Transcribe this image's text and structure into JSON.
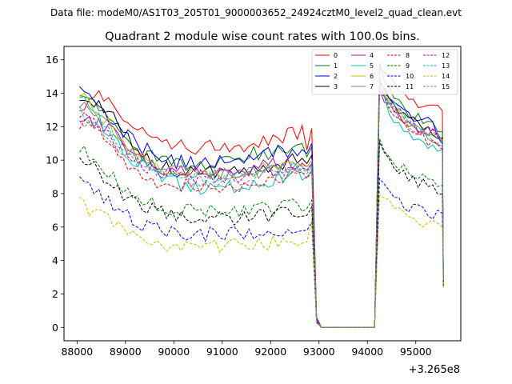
{
  "chart_data": {
    "type": "line",
    "suptitle": "Data file: modeM0/AS1T03_205T01_9000003652_24924cztM0_level2_quad_clean.evt",
    "title": "Quadrant 2 module wise count rates with 100.0s bins.",
    "xlabel": "",
    "ylabel": "",
    "x_offset_label": "+3.265e8",
    "xlim": [
      87730,
      95930
    ],
    "ylim": [
      -0.8,
      16.8
    ],
    "x_ticks": [
      88000,
      89000,
      90000,
      91000,
      92000,
      93000,
      94000,
      95000
    ],
    "x_tick_labels": [
      "88000",
      "89000",
      "90000",
      "91000",
      "92000",
      "93000",
      "94000",
      "95000"
    ],
    "y_ticks": [
      0,
      2,
      4,
      6,
      8,
      10,
      12,
      14,
      16
    ],
    "y_tick_labels": [
      "0",
      "2",
      "4",
      "6",
      "8",
      "10",
      "12",
      "14",
      "16"
    ],
    "bin_width": 100,
    "segment1": {
      "x_start": 88050,
      "x_end": 92850,
      "gap_drop_x": 92950,
      "gap_start": 93050,
      "gap_end": 94150,
      "seg2_start": 94250,
      "seg2_end": 95550
    },
    "legend": {
      "position": "top-right",
      "columns": 4
    },
    "series": [
      {
        "name": "0",
        "color": "#ff0000",
        "dash": "solid",
        "shape": [
          13.1,
          14.2,
          12.6,
          11.9,
          11.3,
          11.0,
          10.8,
          11.0,
          10.9,
          10.9,
          11.3,
          11.6,
          11.9
        ],
        "tail": [
          10.6,
          11.9,
          0.6
        ],
        "seg2": [
          15.6,
          14.5,
          13.8,
          13.3,
          13.0,
          12.9
        ],
        "end": 2.6
      },
      {
        "name": "1",
        "color": "#008000",
        "dash": "solid",
        "shape": [
          13.6,
          13.3,
          11.8,
          10.5,
          10.1,
          9.7,
          9.6,
          9.8,
          10.2,
          10.4,
          10.5,
          10.7,
          10.9
        ],
        "tail": [
          10.2,
          10.8,
          0.4
        ],
        "seg2": [
          15.8,
          13.9,
          13.0,
          12.5,
          12.2,
          11.6
        ],
        "end": 3.2
      },
      {
        "name": "2",
        "color": "#0000ff",
        "dash": "solid",
        "shape": [
          14.2,
          13.3,
          11.9,
          10.9,
          10.3,
          9.9,
          9.8,
          9.9,
          10.1,
          10.1,
          10.4,
          10.6,
          10.7
        ],
        "tail": [
          10.4,
          11.0,
          0.5
        ],
        "seg2": [
          14.8,
          13.3,
          12.8,
          12.5,
          12.2,
          11.3
        ],
        "end": 3.0
      },
      {
        "name": "3",
        "color": "#000000",
        "dash": "solid",
        "shape": [
          13.2,
          13.7,
          12.0,
          10.5,
          9.7,
          9.4,
          9.3,
          9.3,
          9.4,
          9.5,
          9.7,
          10.0,
          10.2
        ],
        "tail": [
          9.8,
          10.3,
          0.4
        ],
        "seg2": [
          14.6,
          13.4,
          12.6,
          12.1,
          11.7,
          11.2
        ],
        "end": 3.0
      },
      {
        "name": "4",
        "color": "#bf00bf",
        "dash": "solid",
        "shape": [
          12.3,
          12.3,
          11.3,
          10.1,
          9.6,
          9.3,
          9.2,
          9.2,
          9.4,
          9.5,
          9.7,
          9.9,
          10.0
        ],
        "tail": [
          9.6,
          10.0,
          0.4
        ],
        "seg2": [
          14.2,
          13.1,
          12.5,
          12.0,
          11.7,
          11.2
        ],
        "end": 2.9
      },
      {
        "name": "5",
        "color": "#00bfbf",
        "dash": "solid",
        "shape": [
          13.7,
          12.4,
          11.0,
          9.8,
          9.1,
          8.6,
          8.4,
          8.4,
          8.5,
          8.6,
          8.9,
          9.1,
          9.3
        ],
        "tail": [
          9.0,
          9.4,
          0.4
        ],
        "seg2": [
          14.0,
          12.6,
          11.8,
          11.3,
          10.9,
          10.3
        ],
        "end": 2.8
      },
      {
        "name": "6",
        "color": "#bfbf00",
        "dash": "solid",
        "shape": [
          13.9,
          12.8,
          11.5,
          10.3,
          9.6,
          9.3,
          9.2,
          9.2,
          9.3,
          9.4,
          9.6,
          9.8,
          9.9
        ],
        "tail": [
          9.6,
          10.0,
          0.4
        ],
        "seg2": [
          15.1,
          13.4,
          12.5,
          12.0,
          11.6,
          11.0
        ],
        "end": 2.9
      },
      {
        "name": "7",
        "color": "#808080",
        "dash": "solid",
        "shape": [
          13.4,
          12.5,
          11.3,
          10.2,
          9.6,
          9.3,
          9.1,
          9.1,
          9.2,
          9.3,
          9.4,
          9.6,
          9.7
        ],
        "tail": [
          9.4,
          9.8,
          0.4
        ],
        "seg2": [
          14.5,
          13.2,
          12.4,
          11.9,
          11.5,
          10.9
        ],
        "end": 2.9
      },
      {
        "name": "8",
        "color": "#ff0000",
        "dash": "dashed",
        "shape": [
          12.1,
          11.7,
          10.4,
          9.2,
          8.7,
          8.5,
          8.4,
          8.4,
          8.5,
          8.6,
          8.8,
          9.0,
          9.2
        ],
        "tail": [
          8.9,
          9.3,
          0.4
        ],
        "seg2": [
          14.1,
          12.7,
          12.0,
          11.5,
          11.1,
          10.6
        ],
        "end": 2.7
      },
      {
        "name": "9",
        "color": "#008000",
        "dash": "dashed",
        "shape": [
          10.9,
          9.8,
          8.7,
          7.8,
          7.3,
          7.0,
          6.9,
          6.9,
          6.9,
          7.0,
          7.1,
          7.3,
          7.4
        ],
        "tail": [
          7.1,
          7.6,
          0.3
        ],
        "seg2": [
          11.3,
          10.0,
          9.4,
          9.0,
          8.7,
          8.4
        ],
        "end": 2.5
      },
      {
        "name": "10",
        "color": "#0000ff",
        "dash": "dashed",
        "shape": [
          8.8,
          7.9,
          7.0,
          6.3,
          5.9,
          5.7,
          5.6,
          5.6,
          5.6,
          5.7,
          5.8,
          5.9,
          6.0
        ],
        "tail": [
          5.8,
          6.3,
          0.3
        ],
        "seg2": [
          8.9,
          7.9,
          7.3,
          7.0,
          6.8,
          6.6
        ],
        "end": 2.4
      },
      {
        "name": "11",
        "color": "#000000",
        "dash": "dashed",
        "shape": [
          10.3,
          9.2,
          8.2,
          7.4,
          6.9,
          6.6,
          6.5,
          6.5,
          6.5,
          6.6,
          6.7,
          6.9,
          7.0
        ],
        "tail": [
          6.7,
          7.2,
          0.3
        ],
        "seg2": [
          11.1,
          9.8,
          9.1,
          8.7,
          8.4,
          8.1
        ],
        "end": 2.5
      },
      {
        "name": "12",
        "color": "#bf00bf",
        "dash": "dashed",
        "shape": [
          12.6,
          12.0,
          10.9,
          9.9,
          9.4,
          9.1,
          9.0,
          9.0,
          9.1,
          9.2,
          9.4,
          9.6,
          9.7
        ],
        "tail": [
          9.4,
          9.8,
          0.4
        ],
        "seg2": [
          14.4,
          13.2,
          12.5,
          12.0,
          11.6,
          11.1
        ],
        "end": 2.9
      },
      {
        "name": "13",
        "color": "#00bfbf",
        "dash": "dashed",
        "shape": [
          13.0,
          12.2,
          11.0,
          9.9,
          9.3,
          9.0,
          8.9,
          8.9,
          9.0,
          9.1,
          9.3,
          9.5,
          9.6
        ],
        "tail": [
          9.3,
          9.7,
          0.4
        ],
        "seg2": [
          14.7,
          13.3,
          12.5,
          12.0,
          11.6,
          11.0
        ],
        "end": 2.8
      },
      {
        "name": "14",
        "color": "#bfbf00",
        "dash": "dashed",
        "shape": [
          7.4,
          6.8,
          6.1,
          5.5,
          5.1,
          4.9,
          4.9,
          4.9,
          5.0,
          5.0,
          5.1,
          5.2,
          5.3
        ],
        "tail": [
          5.1,
          6.4,
          0.3
        ],
        "seg2": [
          7.9,
          7.1,
          6.7,
          6.4,
          6.2,
          6.0
        ],
        "end": 2.4
      },
      {
        "name": "15",
        "color": "#808080",
        "dash": "dashed",
        "shape": [
          12.4,
          11.9,
          10.8,
          9.8,
          9.2,
          8.9,
          8.8,
          8.8,
          8.9,
          9.0,
          9.2,
          9.4,
          9.5
        ],
        "tail": [
          9.2,
          9.6,
          0.4
        ],
        "seg2": [
          14.3,
          13.0,
          12.3,
          11.8,
          11.5,
          10.9
        ],
        "end": 2.8
      }
    ]
  }
}
